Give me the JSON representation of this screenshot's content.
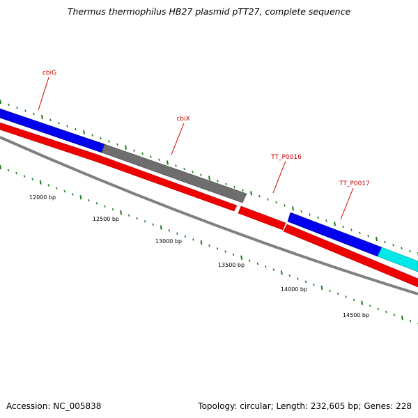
{
  "title": "Thermus thermophilus HB27 plasmid pTT27, complete sequence",
  "footer": {
    "accession": "Accession: NC_005838",
    "topology": "Topology: circular; Length: 232,605 bp; Genes: 228"
  },
  "colors": {
    "gene_label": "#cc0000",
    "tick": "#1a7a1a",
    "backbone": "#808080",
    "gene_blue": "#0000ee",
    "gene_gray": "#6e6e6e",
    "gene_red": "#ee0000",
    "gene_cyan": "#00e8e8"
  },
  "gene_labels": [
    {
      "name": "cbiG"
    },
    {
      "name": "cbiX"
    },
    {
      "name": "TT_P0016"
    },
    {
      "name": "TT_P0017"
    }
  ],
  "ticks": [
    {
      "label": "12000 bp"
    },
    {
      "label": "12500 bp"
    },
    {
      "label": "13000 bp"
    },
    {
      "label": "13500 bp"
    },
    {
      "label": "14000 bp"
    },
    {
      "label": "14500 bp"
    }
  ]
}
